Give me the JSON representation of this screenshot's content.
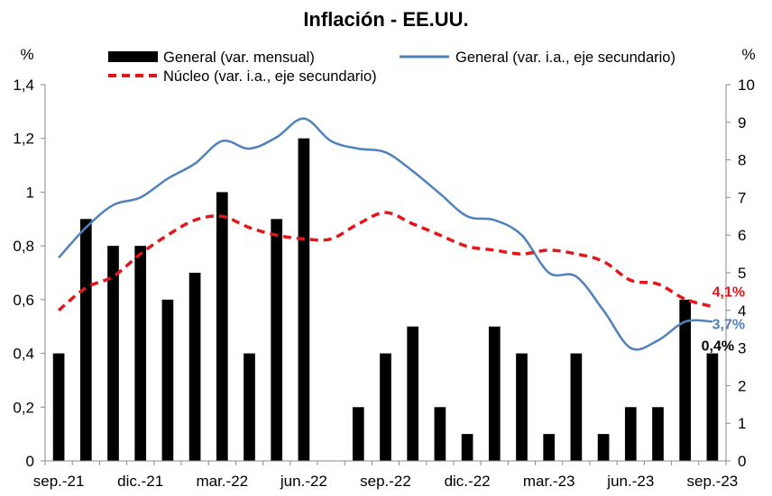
{
  "chart_data": {
    "type": "bar+line",
    "title": "Inflación - EE.UU.",
    "y_left_unit": "%",
    "y_right_unit": "%",
    "ylim_left": [
      0,
      1.4
    ],
    "ylim_right": [
      0,
      10
    ],
    "y_left_ticks": [
      "0",
      "0,2",
      "0,4",
      "0,6",
      "0,8",
      "1",
      "1,2",
      "1,4"
    ],
    "y_right_ticks": [
      "0",
      "1",
      "2",
      "3",
      "4",
      "5",
      "6",
      "7",
      "8",
      "9",
      "10"
    ],
    "x_tick_labels": [
      "sep.-21",
      "dic.-21",
      "mar.-22",
      "jun.-22",
      "sep.-22",
      "dic.-22",
      "mar.-23",
      "jun.-23",
      "sep.-23"
    ],
    "months": [
      "sep.-21",
      "oct.-21",
      "nov.-21",
      "dic.-21",
      "ene.-22",
      "feb.-22",
      "mar.-22",
      "abr.-22",
      "may.-22",
      "jun.-22",
      "jul.-22",
      "ago.-22",
      "sep.-22",
      "oct.-22",
      "nov.-22",
      "dic.-22",
      "ene.-23",
      "feb.-23",
      "mar.-23",
      "abr.-23",
      "may.-23",
      "jun.-23",
      "jul.-23",
      "ago.-23",
      "sep.-23"
    ],
    "series": [
      {
        "name": "General (var. mensual)",
        "kind": "bar",
        "axis": "left",
        "color": "#000000",
        "values": [
          0.4,
          0.9,
          0.8,
          0.8,
          0.6,
          0.7,
          1.0,
          0.4,
          0.9,
          1.2,
          0.0,
          0.2,
          0.4,
          0.5,
          0.2,
          0.1,
          0.5,
          0.4,
          0.1,
          0.4,
          0.1,
          0.2,
          0.2,
          0.6,
          0.4
        ]
      },
      {
        "name": "General (var. i.a., eje secundario)",
        "kind": "line",
        "axis": "right",
        "color": "#4F81BD",
        "values": [
          5.4,
          6.2,
          6.8,
          7.0,
          7.5,
          7.9,
          8.5,
          8.3,
          8.6,
          9.1,
          8.5,
          8.3,
          8.2,
          7.7,
          7.1,
          6.5,
          6.4,
          6.0,
          5.0,
          4.9,
          4.0,
          3.0,
          3.2,
          3.7,
          3.7
        ]
      },
      {
        "name": "Núcleo (var. i.a., eje secundario)",
        "kind": "dashed-line",
        "axis": "right",
        "color": "#E3161C",
        "values": [
          4.0,
          4.6,
          4.9,
          5.5,
          6.0,
          6.4,
          6.5,
          6.2,
          6.0,
          5.9,
          5.9,
          6.3,
          6.6,
          6.3,
          6.0,
          5.7,
          5.6,
          5.5,
          5.6,
          5.5,
          5.3,
          4.8,
          4.7,
          4.3,
          4.1
        ]
      }
    ],
    "annotations": [
      {
        "text": "4,1%",
        "series": "Núcleo (var. i.a., eje secundario)",
        "color": "#E3161C"
      },
      {
        "text": "3,7%",
        "series": "General (var. i.a., eje secundario)",
        "color": "#4F81BD"
      },
      {
        "text": "0,4%",
        "series": "General (var. mensual)",
        "color": "#000000"
      }
    ],
    "legend_position": "top",
    "grid": false
  }
}
